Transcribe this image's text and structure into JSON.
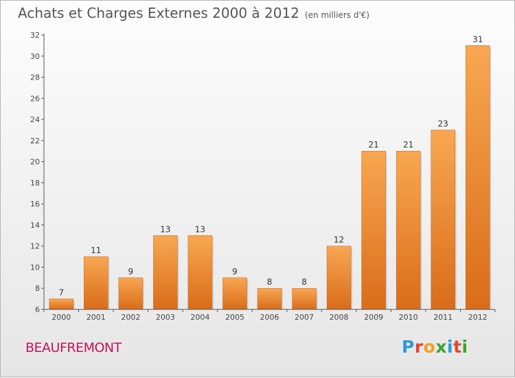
{
  "title": "Achats et Charges Externes 2000 à 2012",
  "subtitle": "(en milliers d'€)",
  "place": "BEAUFREMONT",
  "logo": {
    "letters": [
      "P",
      "r",
      "o",
      "x",
      "i",
      "t",
      "i"
    ],
    "colors": [
      "#2a9ad8",
      "#e8442a",
      "#f0a020",
      "#3aa335",
      "#2a9ad8",
      "#e8442a",
      "#3aa335"
    ]
  },
  "colors": {
    "bar_light": "#f8a752",
    "bar_dark": "#d96c19",
    "axis": "#555555",
    "grid": "#e0e0e0"
  },
  "chart_data": {
    "type": "bar",
    "title": "Achats et Charges Externes 2000 à 2012",
    "subtitle": "(en milliers d'€)",
    "xlabel": "",
    "ylabel": "",
    "categories": [
      "2000",
      "2001",
      "2002",
      "2003",
      "2004",
      "2005",
      "2006",
      "2007",
      "2008",
      "2009",
      "2010",
      "2011",
      "2012"
    ],
    "values": [
      7,
      11,
      9,
      13,
      13,
      9,
      8,
      8,
      12,
      21,
      21,
      23,
      31
    ],
    "ylim": [
      6,
      32
    ],
    "yticks": [
      6,
      8,
      10,
      12,
      14,
      16,
      18,
      20,
      22,
      24,
      26,
      28,
      30,
      32
    ],
    "grid": false,
    "data_labels": true
  }
}
